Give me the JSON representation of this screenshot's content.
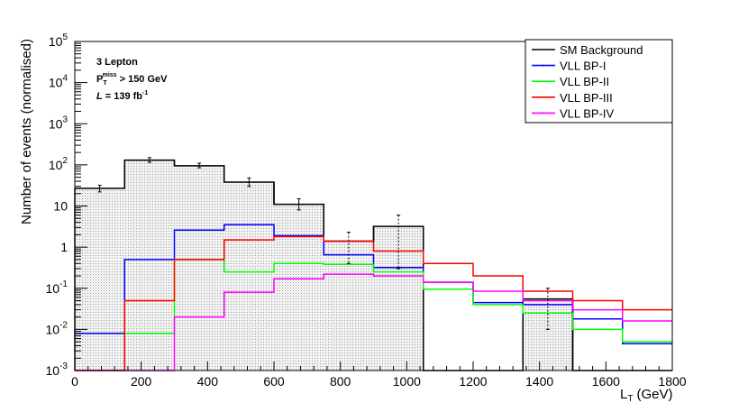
{
  "chart_data": {
    "type": "line",
    "step": true,
    "xlabel": "L",
    "xlabel_sub": "T",
    "xlabel_unit": "(GeV)",
    "ylabel": "Number of events (normalised)",
    "xlim": [
      0,
      1800
    ],
    "ylim": [
      0.001,
      100000
    ],
    "log_y": true,
    "x_ticks": [
      0,
      200,
      400,
      600,
      800,
      1000,
      1200,
      1400,
      1600,
      1800
    ],
    "y_ticks": [
      {
        "value": 0.001,
        "base": "10",
        "exp": "-3"
      },
      {
        "value": 0.01,
        "base": "10",
        "exp": "-2"
      },
      {
        "value": 0.1,
        "base": "10",
        "exp": "-1"
      },
      {
        "value": 1,
        "base": "1",
        "exp": ""
      },
      {
        "value": 10,
        "base": "10",
        "exp": ""
      },
      {
        "value": 100,
        "base": "10",
        "exp": "2"
      },
      {
        "value": 1000,
        "base": "10",
        "exp": "3"
      },
      {
        "value": 10000,
        "base": "10",
        "exp": "4"
      },
      {
        "value": 100000,
        "base": "10",
        "exp": "5"
      }
    ],
    "annotations": {
      "line1": "3 Lepton",
      "line2_main": "P",
      "line2_sub": "T",
      "line2_sup": "miss",
      "line2_rest": "> 150 GeV",
      "line3_main": "L",
      "line3_rest": "= 139 fb",
      "line3_sup": "-1"
    },
    "legend_position": "top-right",
    "bin_edges": [
      0,
      150,
      300,
      450,
      600,
      750,
      900,
      1050,
      1200,
      1350,
      1500,
      1650,
      1800
    ],
    "series": [
      {
        "name": "SM Background",
        "color": "#000000",
        "filled": true,
        "values": [
          27,
          130,
          95,
          38,
          11,
          1.4,
          3.2,
          0,
          0,
          0.055,
          0,
          0
        ],
        "err_low": [
          22,
          115,
          85,
          30,
          8,
          0.4,
          0.3,
          0,
          0,
          0.01,
          0,
          0
        ],
        "err_high": [
          32,
          150,
          110,
          48,
          15,
          2.3,
          6,
          0,
          0,
          0.1,
          0,
          0
        ]
      },
      {
        "name": "VLL BP-I",
        "color": "#0000ff",
        "values": [
          0.008,
          0.5,
          2.6,
          3.5,
          1.9,
          0.65,
          0.32,
          0.14,
          0.045,
          0.04,
          0.018,
          0.0045
        ]
      },
      {
        "name": "VLL BP-II",
        "color": "#00ff00",
        "values": [
          0,
          0.008,
          0.5,
          0.25,
          0.4,
          0.38,
          0.25,
          0.095,
          0.04,
          0.025,
          0.01,
          0.005
        ]
      },
      {
        "name": "VLL BP-III",
        "color": "#ff0000",
        "values": [
          0,
          0.05,
          0.5,
          1.5,
          1.8,
          1.4,
          0.8,
          0.4,
          0.2,
          0.085,
          0.05,
          0.03
        ]
      },
      {
        "name": "VLL BP-IV",
        "color": "#ff00ff",
        "values": [
          0,
          0,
          0.02,
          0.08,
          0.17,
          0.22,
          0.2,
          0.14,
          0.085,
          0.05,
          0.03,
          0.016
        ]
      }
    ]
  }
}
